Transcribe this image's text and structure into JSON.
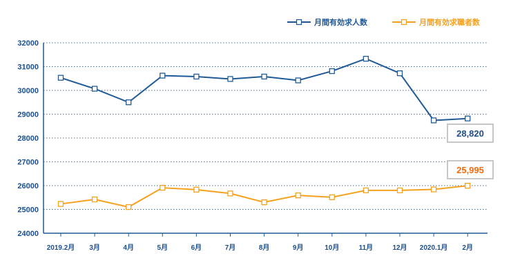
{
  "chart_data": {
    "type": "line",
    "categories": [
      "2019.2月",
      "3月",
      "4月",
      "5月",
      "6月",
      "7月",
      "8月",
      "9月",
      "10月",
      "11月",
      "12月",
      "2020.1月",
      "2月"
    ],
    "series": [
      {
        "name": "月間有効求人数",
        "color": "#1f5a96",
        "values": [
          30530,
          30070,
          29500,
          30620,
          30580,
          30480,
          30580,
          30420,
          30810,
          31330,
          30720,
          28740,
          28820
        ],
        "callout": "28,820",
        "callout_color": "#1f4f86"
      },
      {
        "name": "月間有効求職者数",
        "color": "#f5a11d",
        "values": [
          25230,
          25420,
          25100,
          25910,
          25830,
          25670,
          25300,
          25590,
          25510,
          25800,
          25800,
          25840,
          25995
        ],
        "callout": "25,995",
        "callout_color": "#f06a0e"
      }
    ],
    "y_ticks": [
      "32000",
      "31000",
      "30000",
      "29000",
      "28000",
      "27000",
      "26000",
      "25000",
      "24000"
    ],
    "ylim": [
      24000,
      32000
    ],
    "grid": "horizontal-dotted",
    "legend": "top-right",
    "axis_color": "#1f5a96",
    "marker": "hollow-square"
  }
}
